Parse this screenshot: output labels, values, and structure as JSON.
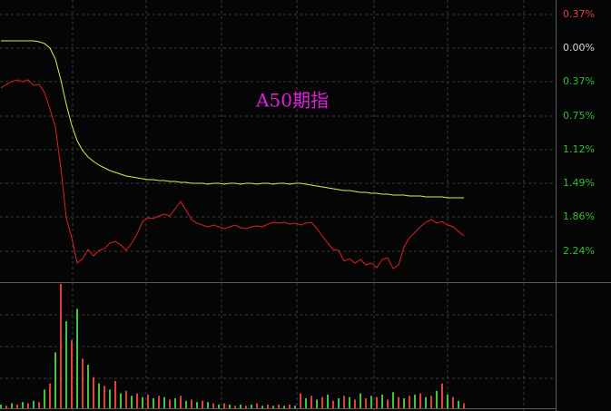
{
  "chart_data": {
    "type": "line",
    "title": "A50期指",
    "title_color": "#e020e0",
    "ylim": [
      -2.57,
      0.53
    ],
    "yticks": [
      {
        "value": 0.37,
        "label": "0.37%"
      },
      {
        "value": 0,
        "label": "0.00%"
      },
      {
        "value": -0.37,
        "label": "0.37%"
      },
      {
        "value": -0.75,
        "label": "0.75%"
      },
      {
        "value": -1.12,
        "label": "1.12%"
      },
      {
        "value": -1.49,
        "label": "1.49%"
      },
      {
        "value": -1.86,
        "label": "1.86%"
      },
      {
        "value": -2.24,
        "label": "2.24%"
      }
    ],
    "grid": true,
    "series": [
      {
        "color": "#e8e850",
        "values": [
          0.08,
          0.08,
          0.08,
          0.08,
          0.08,
          0.08,
          0.08,
          0.07,
          0.05,
          0.0,
          -0.12,
          -0.35,
          -0.62,
          -0.85,
          -1.02,
          -1.13,
          -1.2,
          -1.25,
          -1.29,
          -1.32,
          -1.35,
          -1.37,
          -1.39,
          -1.41,
          -1.42,
          -1.43,
          -1.44,
          -1.45,
          -1.45,
          -1.46,
          -1.46,
          -1.47,
          -1.47,
          -1.48,
          -1.48,
          -1.49,
          -1.49,
          -1.49,
          -1.5,
          -1.49,
          -1.49,
          -1.5,
          -1.49,
          -1.49,
          -1.5,
          -1.49,
          -1.49,
          -1.5,
          -1.49,
          -1.49,
          -1.5,
          -1.49,
          -1.49,
          -1.5,
          -1.49,
          -1.49,
          -1.5,
          -1.51,
          -1.52,
          -1.53,
          -1.54,
          -1.55,
          -1.56,
          -1.57,
          -1.57,
          -1.58,
          -1.59,
          -1.59,
          -1.6,
          -1.6,
          -1.61,
          -1.61,
          -1.62,
          -1.62,
          -1.62,
          -1.63,
          -1.63,
          -1.63,
          -1.64,
          -1.64,
          -1.64,
          -1.64,
          -1.65,
          -1.65,
          -1.65,
          -1.65
        ]
      },
      {
        "color": "#e02020",
        "values": [
          -0.44,
          -0.4,
          -0.37,
          -0.35,
          -0.37,
          -0.35,
          -0.41,
          -0.4,
          -0.49,
          -0.67,
          -0.87,
          -1.32,
          -1.87,
          -2.09,
          -2.37,
          -2.32,
          -2.22,
          -2.29,
          -2.23,
          -2.21,
          -2.15,
          -2.13,
          -2.17,
          -2.23,
          -2.15,
          -2.05,
          -1.91,
          -1.87,
          -1.88,
          -1.85,
          -1.83,
          -1.85,
          -1.77,
          -1.69,
          -1.79,
          -1.89,
          -1.93,
          -1.95,
          -1.97,
          -1.95,
          -1.97,
          -1.99,
          -1.97,
          -1.95,
          -1.98,
          -1.99,
          -1.97,
          -1.96,
          -1.97,
          -1.94,
          -1.92,
          -1.93,
          -1.92,
          -1.94,
          -1.93,
          -1.95,
          -1.93,
          -1.92,
          -1.99,
          -2.07,
          -2.15,
          -2.22,
          -2.23,
          -2.35,
          -2.32,
          -2.37,
          -2.33,
          -2.39,
          -2.37,
          -2.42,
          -2.33,
          -2.31,
          -2.43,
          -2.39,
          -2.19,
          -2.09,
          -2.03,
          -1.97,
          -1.92,
          -1.89,
          -1.93,
          -1.91,
          -1.95,
          -1.97,
          -2.02,
          -2.07
        ]
      }
    ],
    "volume_ylim": [
      0,
      100
    ],
    "volume_series": [
      {
        "color": "#3cc83c",
        "values": [
          3,
          null,
          4,
          null,
          5,
          null,
          6,
          null,
          15,
          null,
          45,
          null,
          70,
          null,
          80,
          null,
          35,
          null,
          20,
          null,
          15,
          null,
          12,
          null,
          10,
          null,
          9,
          null,
          8,
          null,
          9,
          null,
          8,
          null,
          6,
          null,
          5,
          null,
          5,
          null,
          3,
          null,
          3,
          null,
          3,
          null,
          3,
          null,
          2,
          null,
          2,
          null,
          2,
          null,
          2,
          null,
          8,
          null,
          7,
          null,
          11,
          null,
          8,
          null,
          9,
          null,
          12,
          null,
          10,
          null,
          11,
          null,
          13,
          null,
          8,
          null,
          11,
          null,
          9,
          null,
          14,
          null,
          11,
          null,
          6,
          null
        ]
      },
      {
        "color": "#e04040",
        "values": [
          null,
          2,
          null,
          3,
          null,
          4,
          null,
          5,
          null,
          20,
          null,
          100,
          null,
          55,
          null,
          40,
          null,
          25,
          null,
          18,
          null,
          22,
          null,
          14,
          null,
          12,
          null,
          11,
          null,
          10,
          null,
          7,
          null,
          10,
          null,
          7,
          null,
          6,
          null,
          4,
          null,
          4,
          null,
          2,
          null,
          2,
          null,
          4,
          null,
          3,
          null,
          3,
          null,
          3,
          null,
          12,
          null,
          10,
          null,
          9,
          null,
          6,
          null,
          10,
          null,
          7,
          null,
          8,
          null,
          9,
          null,
          7,
          null,
          9,
          null,
          10,
          null,
          12,
          null,
          10,
          null,
          20,
          null,
          9,
          null,
          4
        ]
      }
    ]
  }
}
